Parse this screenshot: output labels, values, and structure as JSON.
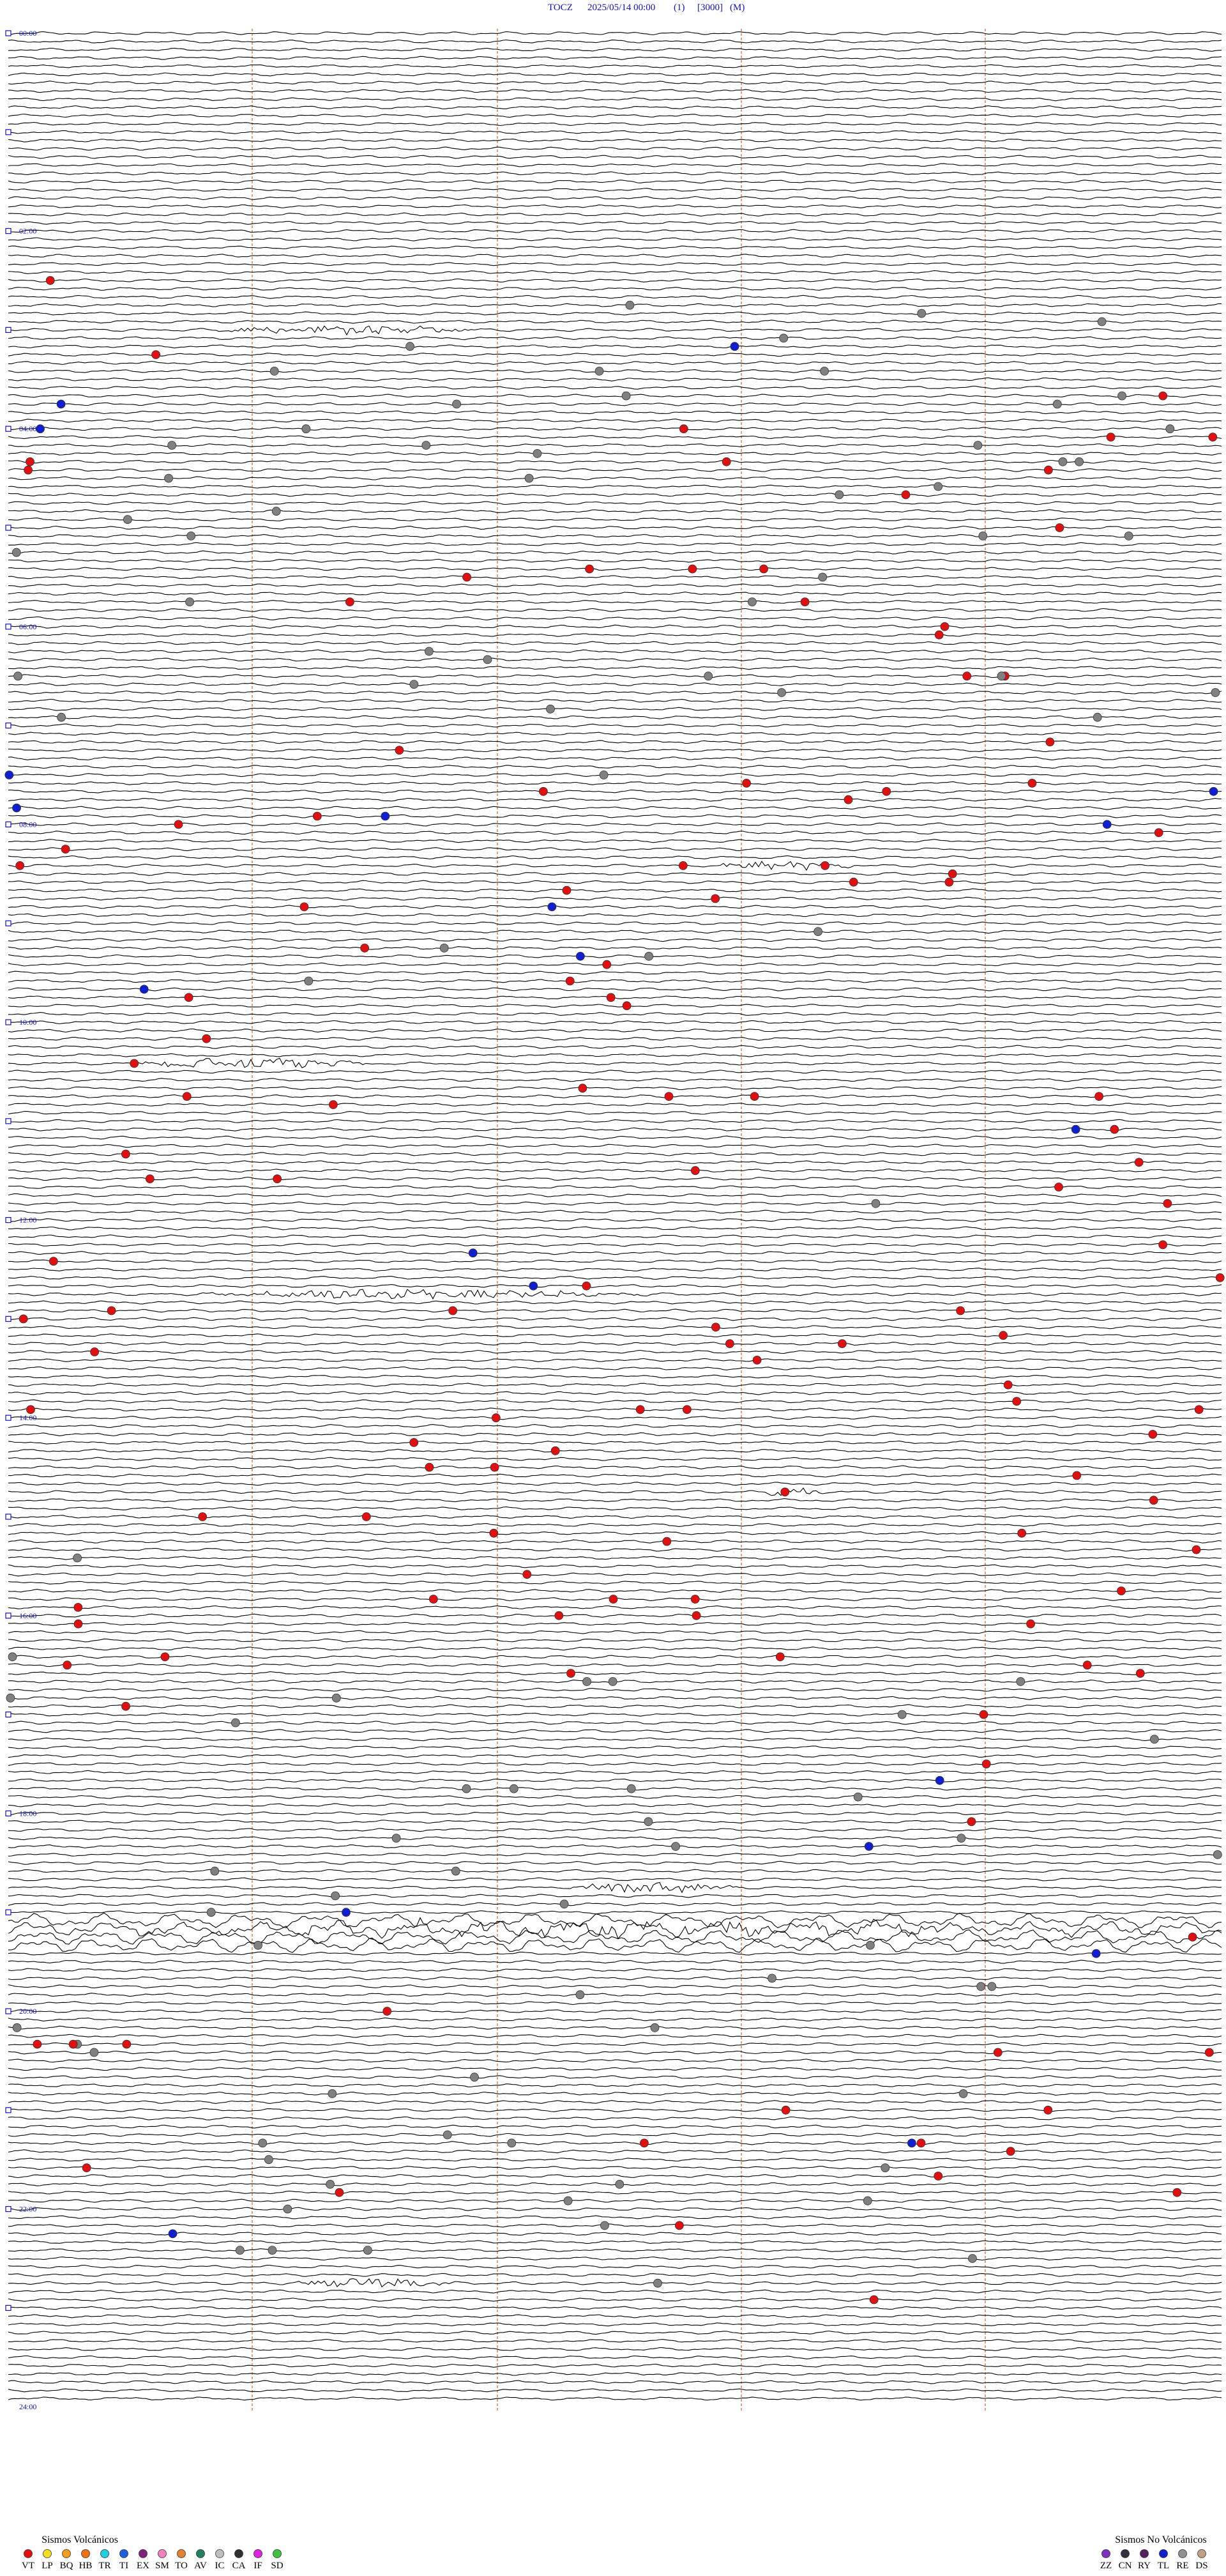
{
  "header": {
    "station": "TOCZ",
    "datetime": "2025/05/14 00:00",
    "channel": "(1)",
    "scale": "[3000]",
    "mode": "(M)"
  },
  "time_labels": [
    "00:00",
    "02:00",
    "04:00",
    "06:00",
    "08:00",
    "10:00",
    "12:00",
    "14:00",
    "16:00",
    "18:00",
    "20:00",
    "22:00",
    "24:00"
  ],
  "legend_volcanic": {
    "title": "Sismos Volcánicos",
    "items": [
      {
        "code": "VT",
        "color": "#e01010"
      },
      {
        "code": "LP",
        "color": "#f0e020"
      },
      {
        "code": "BQ",
        "color": "#f0a020"
      },
      {
        "code": "HB",
        "color": "#f07010"
      },
      {
        "code": "TR",
        "color": "#20d0e0"
      },
      {
        "code": "TI",
        "color": "#2060e0"
      },
      {
        "code": "EX",
        "color": "#802080"
      },
      {
        "code": "SM",
        "color": "#f080c0"
      },
      {
        "code": "TO",
        "color": "#e08030"
      },
      {
        "code": "AV",
        "color": "#208060"
      },
      {
        "code": "IC",
        "color": "#c0c0c0"
      },
      {
        "code": "CA",
        "color": "#303030"
      },
      {
        "code": "IF",
        "color": "#e020e0"
      },
      {
        "code": "SD",
        "color": "#40c040"
      }
    ]
  },
  "legend_non_volcanic": {
    "title": "Sismos No Volcánicos",
    "items": [
      {
        "code": "ZZ",
        "color": "#8030c0"
      },
      {
        "code": "CN",
        "color": "#303040"
      },
      {
        "code": "RY",
        "color": "#502060"
      },
      {
        "code": "TL",
        "color": "#1020d0"
      },
      {
        "code": "RE",
        "color": "#909090"
      },
      {
        "code": "DS",
        "color": "#c0a080"
      }
    ]
  }
}
